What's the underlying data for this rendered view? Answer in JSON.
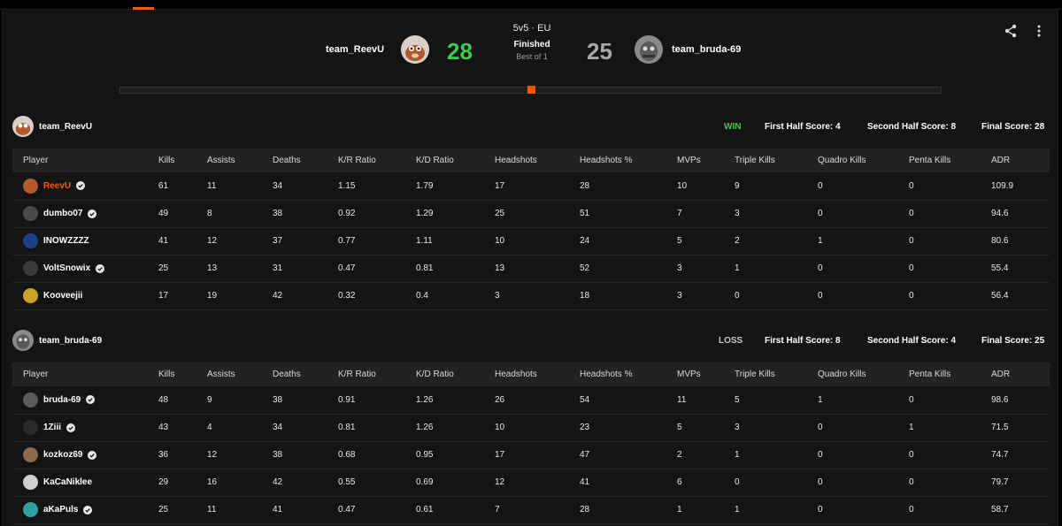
{
  "header": {
    "team1": {
      "name": "team_ReevU",
      "score": "28",
      "score_color": "#3fc950"
    },
    "team2": {
      "name": "team_bruda-69",
      "score": "25",
      "score_color": "#a8a8a8"
    },
    "mode": "5v5 · EU",
    "status": "Finished",
    "best_of": "Best of 1",
    "accent_color": "#ff5500"
  },
  "columns": [
    "Player",
    "Kills",
    "Assists",
    "Deaths",
    "K/R Ratio",
    "K/D Ratio",
    "Headshots",
    "Headshots %",
    "MVPs",
    "Triple Kills",
    "Quadro Kills",
    "Penta Kills",
    "ADR"
  ],
  "teams": [
    {
      "name": "team_ReevU",
      "result": "WIN",
      "result_color": "#3fc950",
      "first_half": "First Half Score: 4",
      "second_half": "Second Half Score: 8",
      "final": "Final Score: 28",
      "players": [
        {
          "name": "ReevU",
          "verified": true,
          "highlight": true,
          "stats": [
            "61",
            "11",
            "34",
            "1.15",
            "1.79",
            "17",
            "28",
            "10",
            "9",
            "0",
            "0",
            "109.9"
          ]
        },
        {
          "name": "dumbo07",
          "verified": true,
          "highlight": false,
          "stats": [
            "49",
            "8",
            "38",
            "0.92",
            "1.29",
            "25",
            "51",
            "7",
            "3",
            "0",
            "0",
            "94.6"
          ]
        },
        {
          "name": "INOWZZZZ",
          "verified": false,
          "highlight": false,
          "stats": [
            "41",
            "12",
            "37",
            "0.77",
            "1.11",
            "10",
            "24",
            "5",
            "2",
            "1",
            "0",
            "80.6"
          ]
        },
        {
          "name": "VoltSnowix",
          "verified": true,
          "highlight": false,
          "stats": [
            "25",
            "13",
            "31",
            "0.47",
            "0.81",
            "13",
            "52",
            "3",
            "1",
            "0",
            "0",
            "55.4"
          ]
        },
        {
          "name": "Kooveejii",
          "verified": false,
          "highlight": false,
          "stats": [
            "17",
            "19",
            "42",
            "0.32",
            "0.4",
            "3",
            "18",
            "3",
            "0",
            "0",
            "0",
            "56.4"
          ]
        }
      ]
    },
    {
      "name": "team_bruda-69",
      "result": "LOSS",
      "result_color": "#c8c8c8",
      "first_half": "First Half Score: 8",
      "second_half": "Second Half Score: 4",
      "final": "Final Score: 25",
      "players": [
        {
          "name": "bruda-69",
          "verified": true,
          "highlight": false,
          "stats": [
            "48",
            "9",
            "38",
            "0.91",
            "1.26",
            "26",
            "54",
            "11",
            "5",
            "1",
            "0",
            "98.6"
          ]
        },
        {
          "name": "1Ziii",
          "verified": true,
          "highlight": false,
          "stats": [
            "43",
            "4",
            "34",
            "0.81",
            "1.26",
            "10",
            "23",
            "5",
            "3",
            "0",
            "1",
            "71.5"
          ]
        },
        {
          "name": "kozkoz69",
          "verified": true,
          "highlight": false,
          "stats": [
            "36",
            "12",
            "38",
            "0.68",
            "0.95",
            "17",
            "47",
            "2",
            "1",
            "0",
            "0",
            "74.7"
          ]
        },
        {
          "name": "KaCaNiklee",
          "verified": false,
          "highlight": false,
          "stats": [
            "29",
            "16",
            "42",
            "0.55",
            "0.69",
            "12",
            "41",
            "6",
            "0",
            "0",
            "0",
            "79.7"
          ]
        },
        {
          "name": "aKaPuls",
          "verified": true,
          "highlight": false,
          "stats": [
            "25",
            "11",
            "41",
            "0.47",
            "0.61",
            "7",
            "28",
            "1",
            "1",
            "0",
            "0",
            "58.7"
          ]
        }
      ]
    }
  ]
}
